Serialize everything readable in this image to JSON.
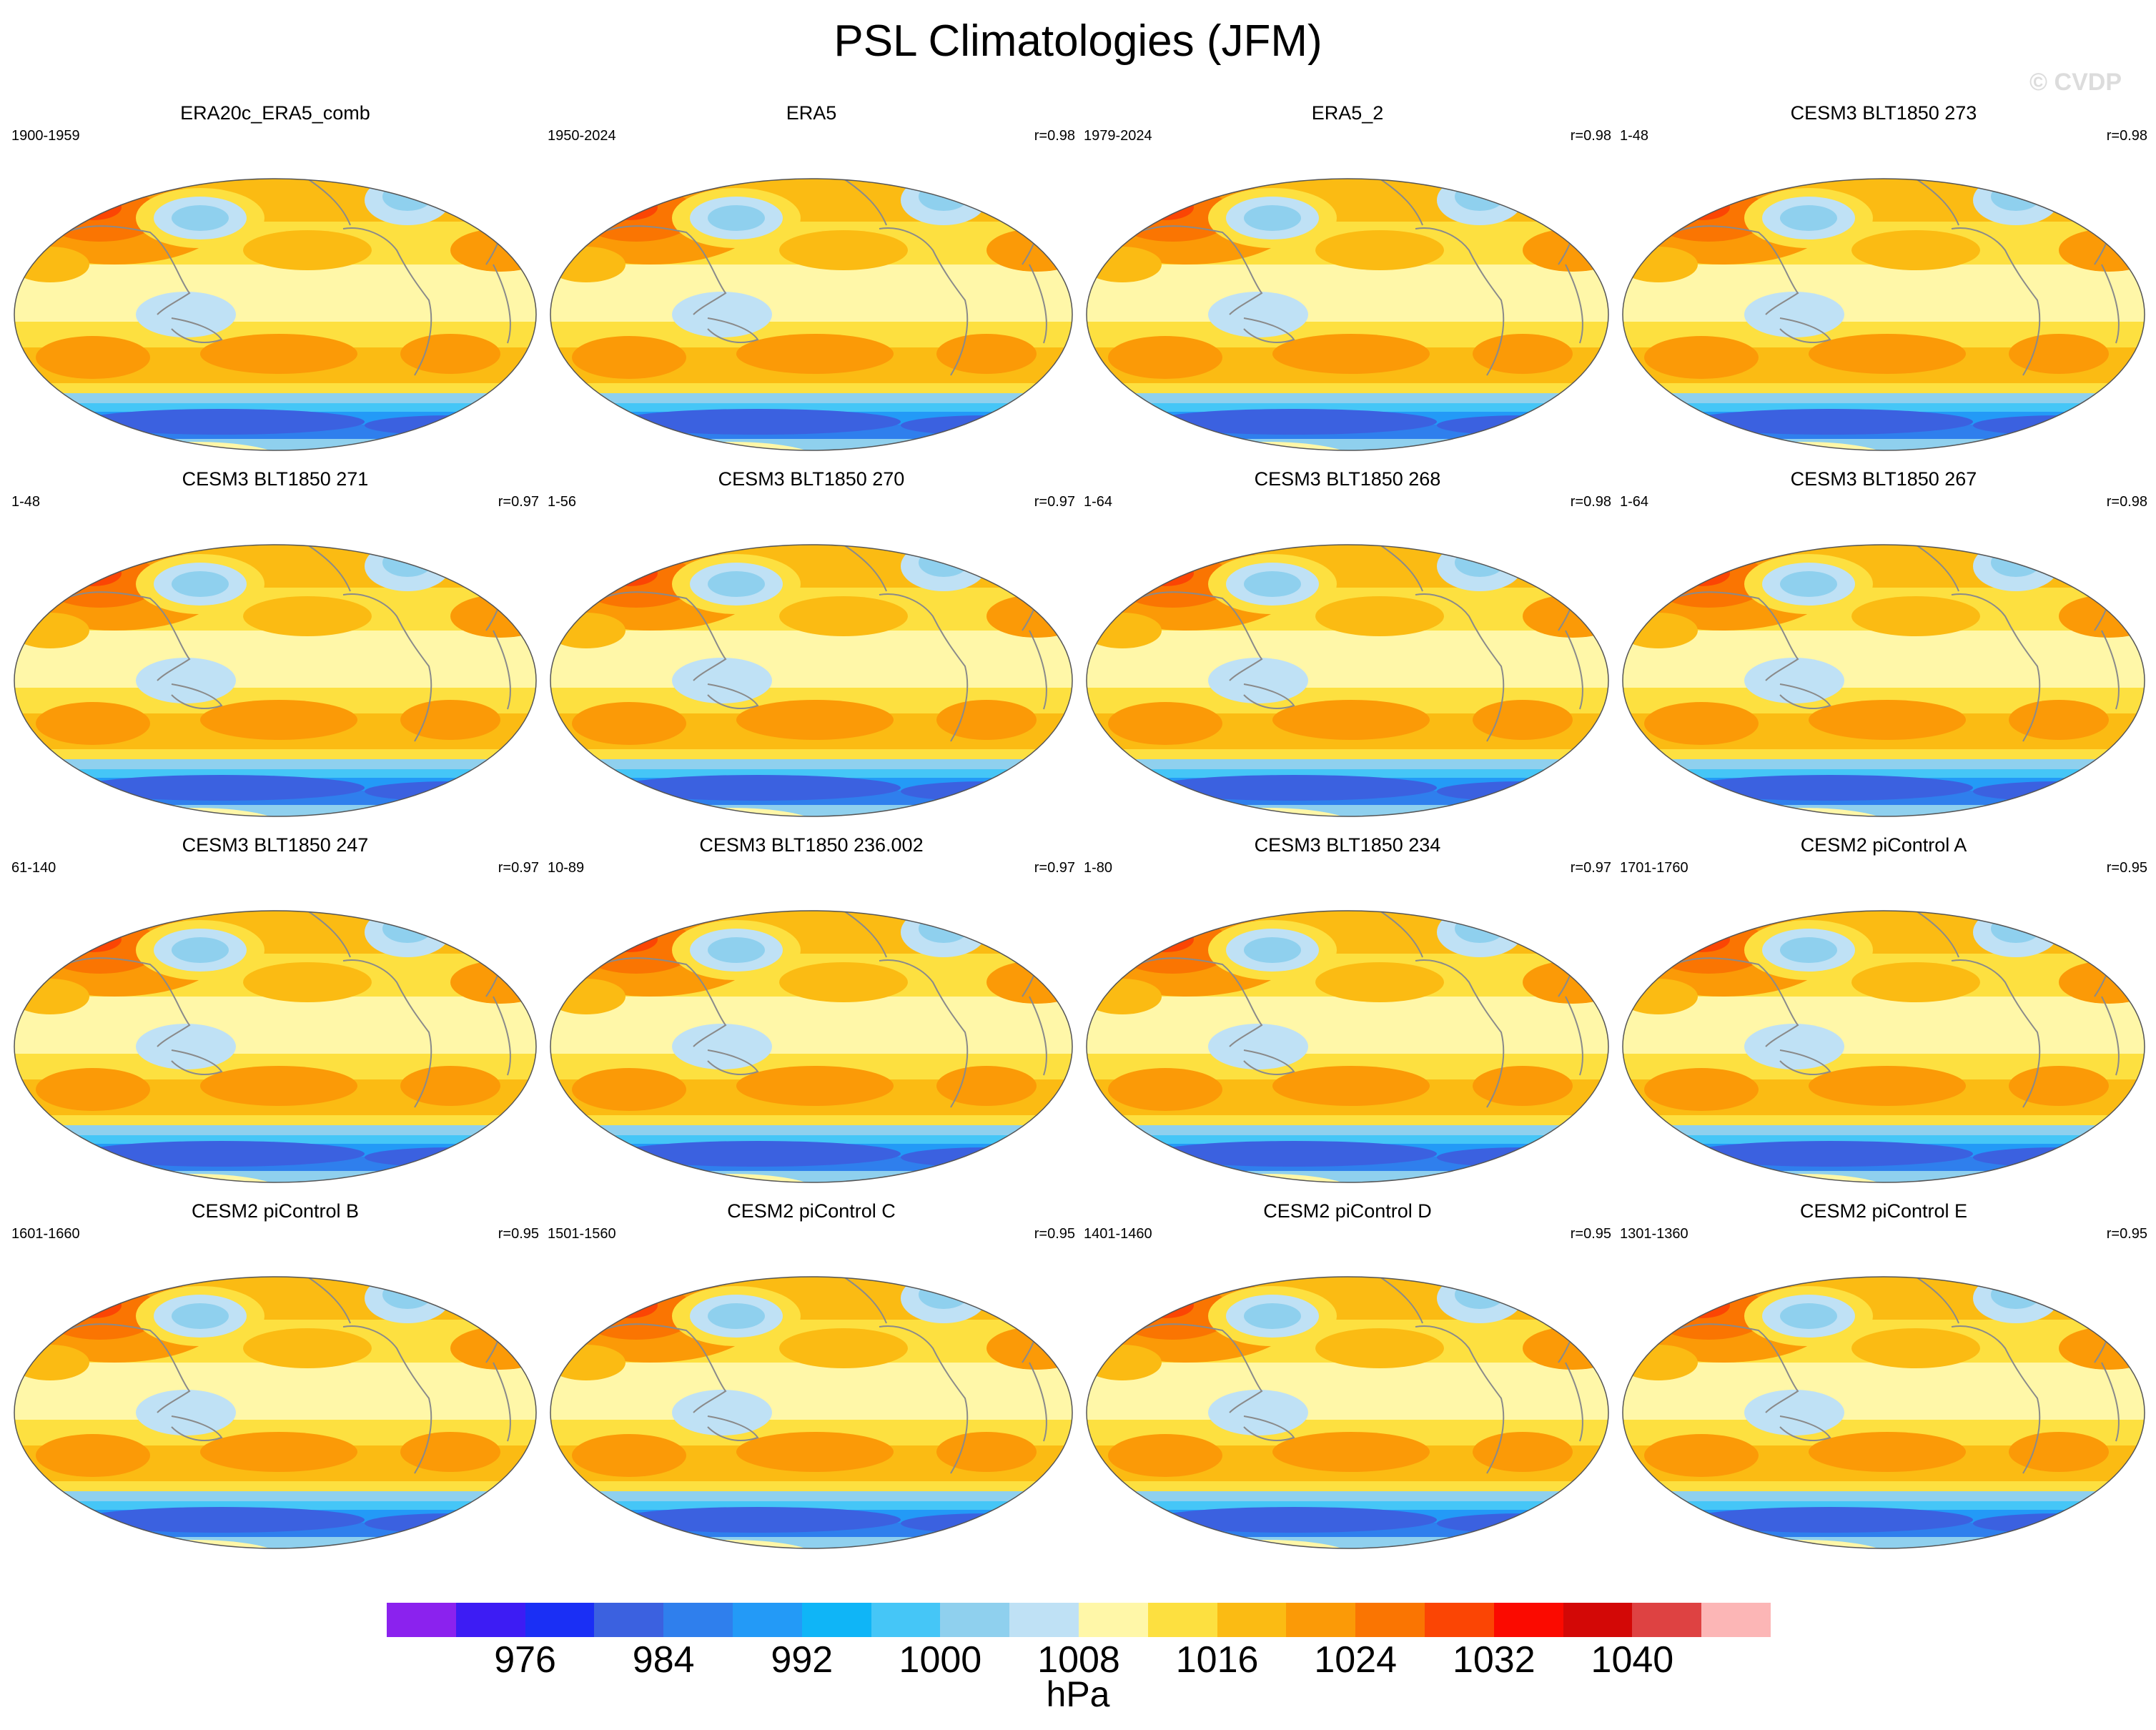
{
  "title": "PSL Climatologies (JFM)",
  "watermark": "© CVDP",
  "panels": [
    {
      "name": "ERA20c_ERA5_comb",
      "years": "1900-1959",
      "corr": ""
    },
    {
      "name": "ERA5",
      "years": "1950-2024",
      "corr": "r=0.98"
    },
    {
      "name": "ERA5_2",
      "years": "1979-2024",
      "corr": "r=0.98"
    },
    {
      "name": "CESM3 BLT1850 273",
      "years": "1-48",
      "corr": "r=0.98"
    },
    {
      "name": "CESM3 BLT1850 271",
      "years": "1-48",
      "corr": "r=0.97"
    },
    {
      "name": "CESM3 BLT1850 270",
      "years": "1-56",
      "corr": "r=0.97"
    },
    {
      "name": "CESM3 BLT1850 268",
      "years": "1-64",
      "corr": "r=0.98"
    },
    {
      "name": "CESM3 BLT1850 267",
      "years": "1-64",
      "corr": "r=0.98"
    },
    {
      "name": "CESM3 BLT1850 247",
      "years": "61-140",
      "corr": "r=0.97"
    },
    {
      "name": "CESM3 BLT1850 236.002",
      "years": "10-89",
      "corr": "r=0.97"
    },
    {
      "name": "CESM3 BLT1850 234",
      "years": "1-80",
      "corr": "r=0.97"
    },
    {
      "name": "CESM2 piControl A",
      "years": "1701-1760",
      "corr": "r=0.95"
    },
    {
      "name": "CESM2 piControl B",
      "years": "1601-1660",
      "corr": "r=0.95"
    },
    {
      "name": "CESM2 piControl C",
      "years": "1501-1560",
      "corr": "r=0.95"
    },
    {
      "name": "CESM2 piControl D",
      "years": "1401-1460",
      "corr": "r=0.95"
    },
    {
      "name": "CESM2 piControl E",
      "years": "1301-1360",
      "corr": "r=0.95"
    }
  ],
  "colorbar": {
    "colors": [
      "#8b22ee",
      "#3d1cf4",
      "#1a2ff5",
      "#3b61e0",
      "#2f7fed",
      "#239af7",
      "#0fb5f7",
      "#45c6f7",
      "#8fd0ee",
      "#bfe1f5",
      "#fff7a8",
      "#fde040",
      "#fbbb13",
      "#fb9a07",
      "#fa7502",
      "#fb4504",
      "#fb0a00",
      "#d30806",
      "#de4242",
      "#fcb6b6"
    ],
    "tick_labels": [
      "976",
      "984",
      "992",
      "1000",
      "1008",
      "1016",
      "1024",
      "1032",
      "1040"
    ],
    "unit": "hPa"
  }
}
